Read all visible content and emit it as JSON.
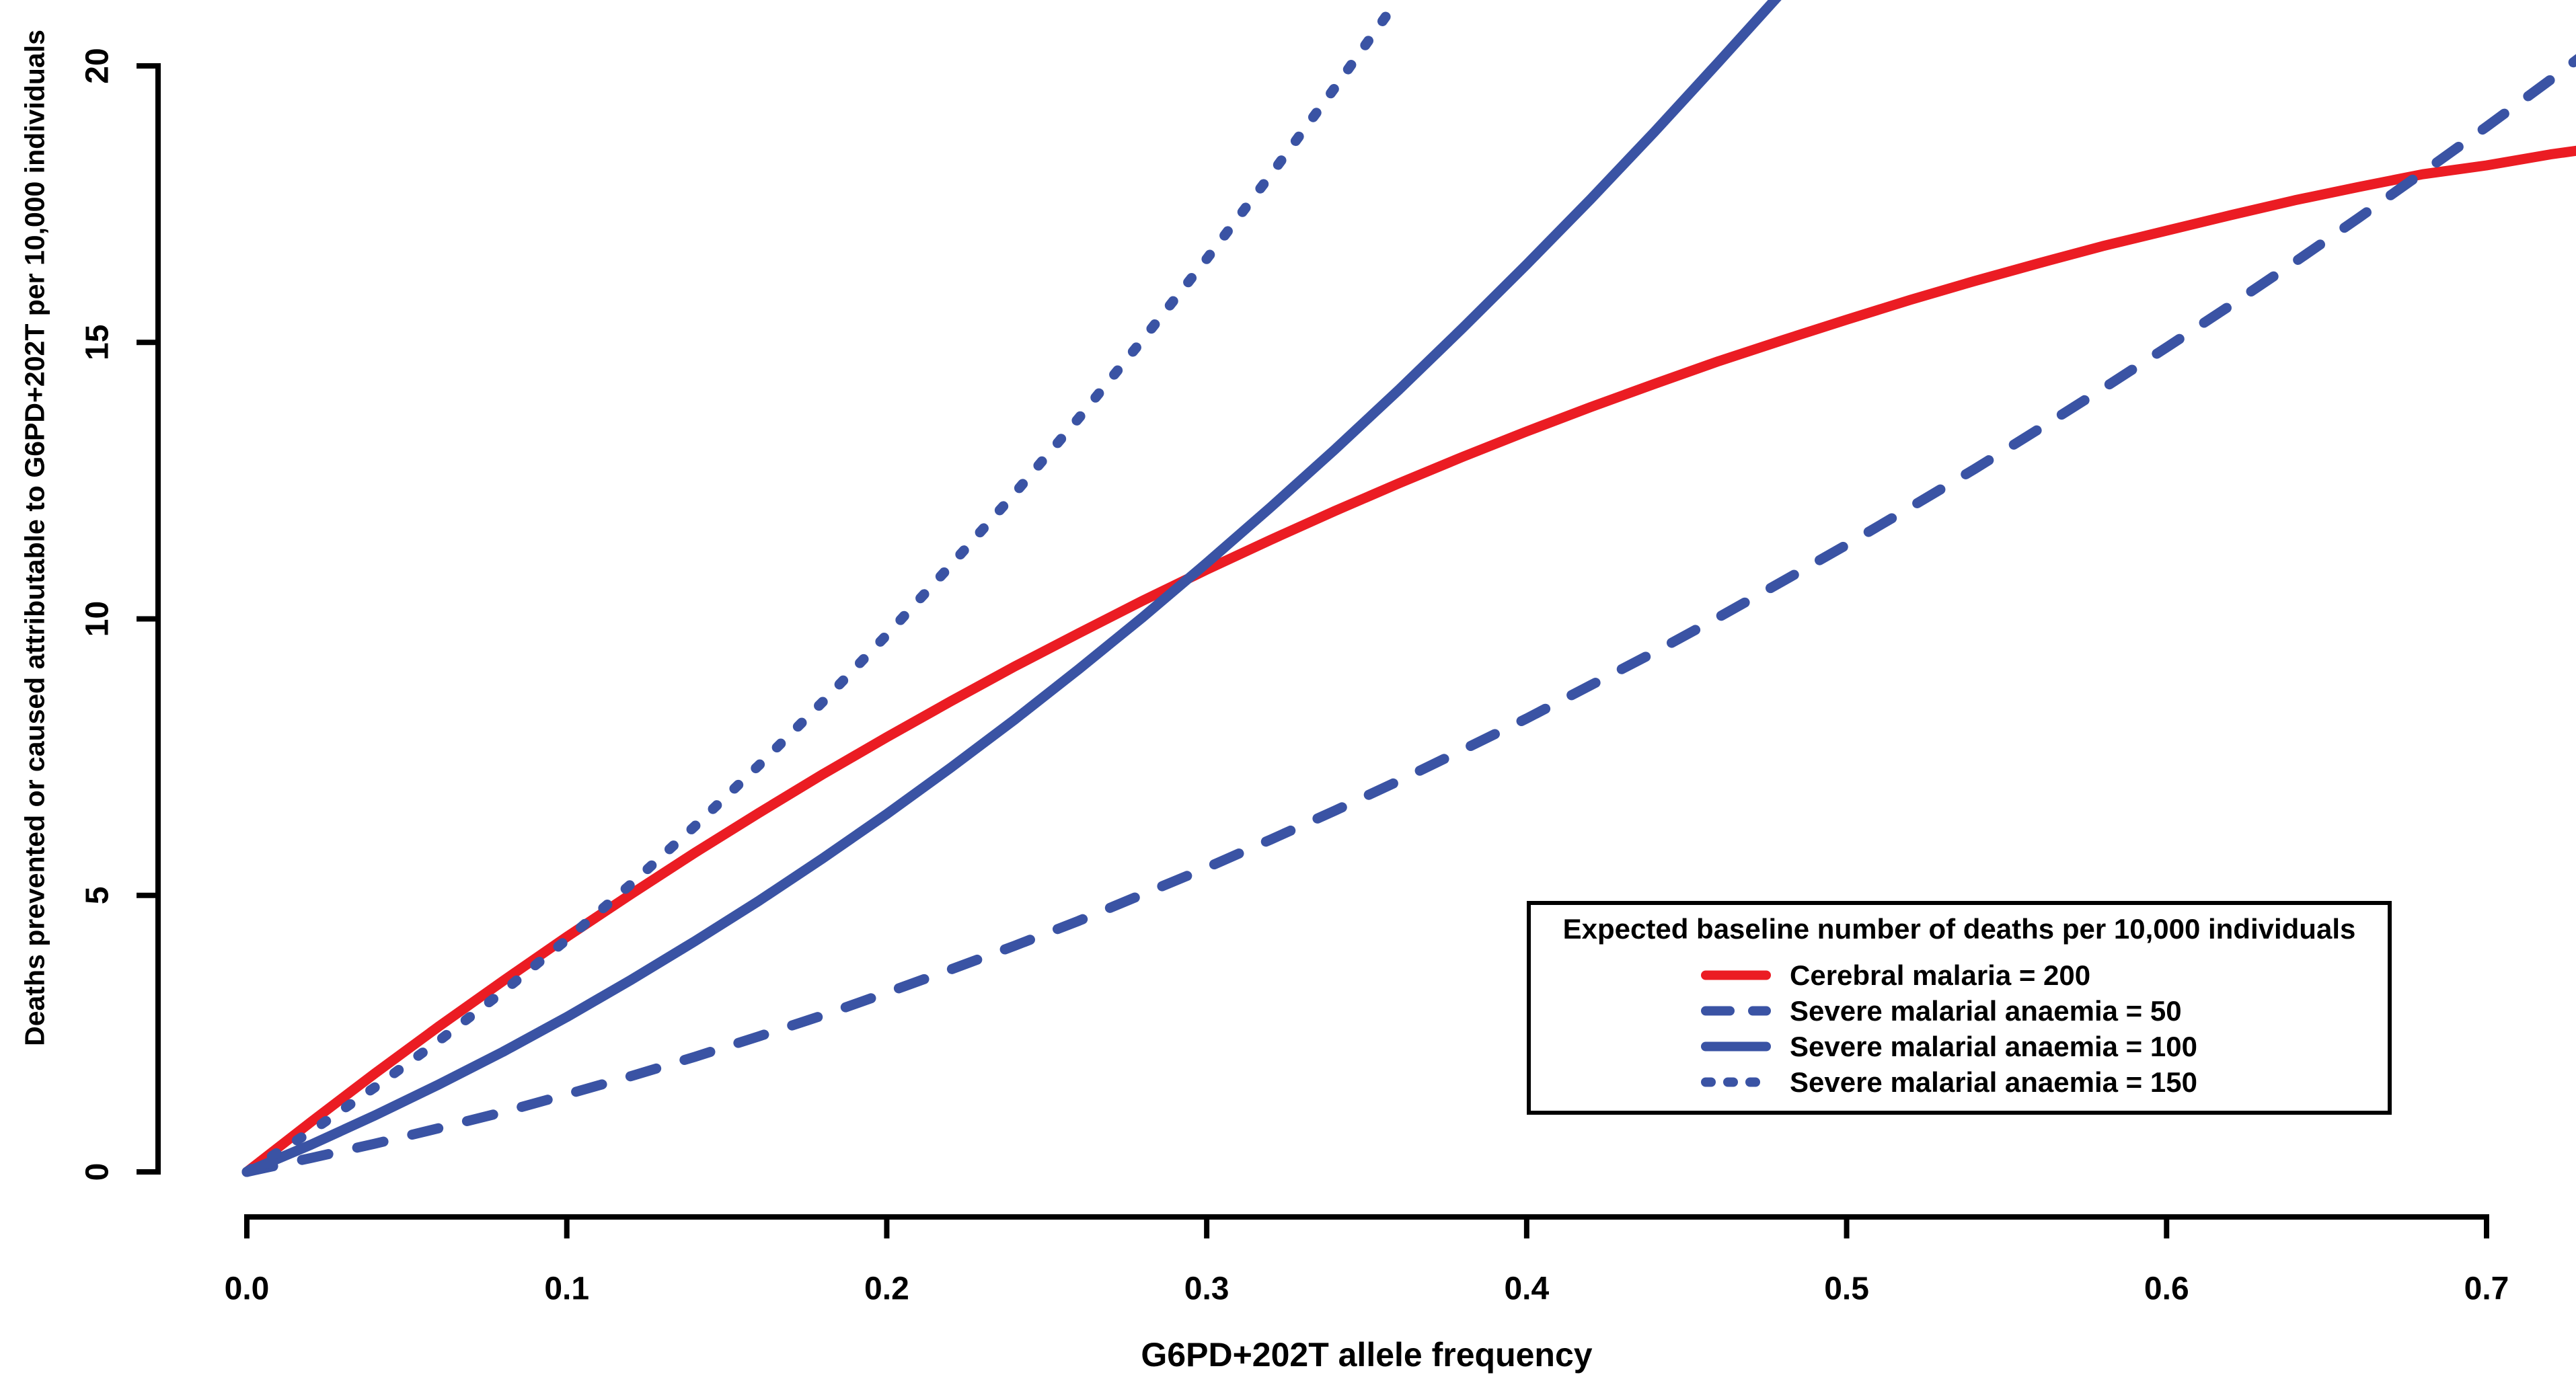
{
  "colors": {
    "red": "#EB1C23",
    "blue": "#3A53A4",
    "axis": "#000000",
    "background": "#FFFFFF"
  },
  "chart_data": {
    "type": "line",
    "title": "",
    "xlabel": "G6PD+202T allele frequency",
    "ylabel": "Deaths prevented or caused attributable to G6PD+202T per 10,000 individuals",
    "xlim": [
      0,
      0.7
    ],
    "ylim": [
      0,
      20
    ],
    "grid": false,
    "x_ticks": [
      {
        "value": 0.0,
        "label": "0.0"
      },
      {
        "value": 0.1,
        "label": "0.1"
      },
      {
        "value": 0.2,
        "label": "0.2"
      },
      {
        "value": 0.3,
        "label": "0.3"
      },
      {
        "value": 0.4,
        "label": "0.4"
      },
      {
        "value": 0.5,
        "label": "0.5"
      },
      {
        "value": 0.6,
        "label": "0.6"
      },
      {
        "value": 0.7,
        "label": "0.7"
      }
    ],
    "y_ticks": [
      {
        "value": 0,
        "label": "0"
      },
      {
        "value": 5,
        "label": "5"
      },
      {
        "value": 10,
        "label": "10"
      },
      {
        "value": 15,
        "label": "15"
      },
      {
        "value": 20,
        "label": "20"
      }
    ],
    "legend": {
      "position": "lower right",
      "title": "Expected baseline number of deaths per 10,000 individuals",
      "items": [
        {
          "label": "Cerebral malaria = 200",
          "color": "red",
          "line_style": "solid"
        },
        {
          "label": "Severe malarial anaemia = 50",
          "color": "blue",
          "line_style": "dashed"
        },
        {
          "label": "Severe malarial anaemia = 100",
          "color": "blue",
          "line_style": "solid"
        },
        {
          "label": "Severe malarial anaemia = 150",
          "color": "blue",
          "line_style": "dotted"
        }
      ]
    },
    "series": [
      {
        "name": "Cerebral malaria = 200",
        "color": "red",
        "line_style": "solid",
        "points": [
          [
            0,
            0
          ],
          [
            0.02,
            0.9
          ],
          [
            0.04,
            1.78
          ],
          [
            0.06,
            2.63
          ],
          [
            0.08,
            3.45
          ],
          [
            0.1,
            4.25
          ],
          [
            0.12,
            5.02
          ],
          [
            0.14,
            5.77
          ],
          [
            0.16,
            6.49
          ],
          [
            0.18,
            7.19
          ],
          [
            0.2,
            7.86
          ],
          [
            0.22,
            8.51
          ],
          [
            0.24,
            9.14
          ],
          [
            0.26,
            9.74
          ],
          [
            0.28,
            10.33
          ],
          [
            0.3,
            10.89
          ],
          [
            0.32,
            11.43
          ],
          [
            0.34,
            11.95
          ],
          [
            0.36,
            12.45
          ],
          [
            0.38,
            12.93
          ],
          [
            0.4,
            13.39
          ],
          [
            0.42,
            13.83
          ],
          [
            0.44,
            14.25
          ],
          [
            0.46,
            14.66
          ],
          [
            0.48,
            15.04
          ],
          [
            0.5,
            15.41
          ],
          [
            0.52,
            15.77
          ],
          [
            0.54,
            16.11
          ],
          [
            0.56,
            16.43
          ],
          [
            0.58,
            16.74
          ],
          [
            0.6,
            17.02
          ],
          [
            0.62,
            17.3
          ],
          [
            0.64,
            17.57
          ],
          [
            0.66,
            17.81
          ],
          [
            0.68,
            18.04
          ],
          [
            0.7,
            18.2
          ],
          [
            0.72,
            18.4
          ],
          [
            0.73,
            18.48
          ]
        ]
      },
      {
        "name": "Severe malarial anaemia = 50",
        "color": "blue",
        "line_style": "dashed",
        "points": [
          [
            0,
            0
          ],
          [
            0.02,
            0.25
          ],
          [
            0.04,
            0.51
          ],
          [
            0.06,
            0.79
          ],
          [
            0.08,
            1.08
          ],
          [
            0.1,
            1.4
          ],
          [
            0.12,
            1.73
          ],
          [
            0.14,
            2.08
          ],
          [
            0.16,
            2.45
          ],
          [
            0.18,
            2.83
          ],
          [
            0.2,
            3.24
          ],
          [
            0.22,
            3.66
          ],
          [
            0.24,
            4.09
          ],
          [
            0.26,
            4.54
          ],
          [
            0.28,
            5.02
          ],
          [
            0.3,
            5.5
          ],
          [
            0.32,
            6.01
          ],
          [
            0.34,
            6.53
          ],
          [
            0.36,
            7.07
          ],
          [
            0.38,
            7.63
          ],
          [
            0.4,
            8.2
          ],
          [
            0.42,
            8.8
          ],
          [
            0.44,
            9.4
          ],
          [
            0.46,
            10.03
          ],
          [
            0.48,
            10.68
          ],
          [
            0.5,
            11.34
          ],
          [
            0.52,
            12.02
          ],
          [
            0.54,
            12.71
          ],
          [
            0.56,
            13.43
          ],
          [
            0.58,
            14.16
          ],
          [
            0.6,
            14.91
          ],
          [
            0.62,
            15.67
          ],
          [
            0.64,
            16.45
          ],
          [
            0.66,
            17.25
          ],
          [
            0.68,
            18.07
          ],
          [
            0.7,
            18.9
          ],
          [
            0.72,
            19.75
          ],
          [
            0.73,
            20.19
          ]
        ]
      },
      {
        "name": "Severe malarial anaemia = 100",
        "color": "blue",
        "line_style": "solid",
        "points": [
          [
            0,
            0
          ],
          [
            0.02,
            0.49
          ],
          [
            0.04,
            1.02
          ],
          [
            0.06,
            1.58
          ],
          [
            0.08,
            2.17
          ],
          [
            0.1,
            2.8
          ],
          [
            0.12,
            3.47
          ],
          [
            0.14,
            4.17
          ],
          [
            0.16,
            4.9
          ],
          [
            0.18,
            5.67
          ],
          [
            0.2,
            6.47
          ],
          [
            0.22,
            7.31
          ],
          [
            0.24,
            8.18
          ],
          [
            0.26,
            9.09
          ],
          [
            0.28,
            10.03
          ],
          [
            0.3,
            11.01
          ],
          [
            0.32,
            12.02
          ],
          [
            0.34,
            13.06
          ],
          [
            0.36,
            14.14
          ],
          [
            0.38,
            15.26
          ],
          [
            0.4,
            16.41
          ],
          [
            0.42,
            17.59
          ],
          [
            0.44,
            18.81
          ],
          [
            0.46,
            20.07
          ],
          [
            0.48,
            21.35
          ]
        ]
      },
      {
        "name": "Severe malarial anaemia = 150",
        "color": "blue",
        "line_style": "dotted",
        "points": [
          [
            0,
            0
          ],
          [
            0.02,
            0.73
          ],
          [
            0.04,
            1.53
          ],
          [
            0.06,
            2.37
          ],
          [
            0.08,
            3.26
          ],
          [
            0.1,
            4.2
          ],
          [
            0.12,
            5.2
          ],
          [
            0.14,
            6.25
          ],
          [
            0.16,
            7.35
          ],
          [
            0.18,
            8.5
          ],
          [
            0.2,
            9.71
          ],
          [
            0.22,
            10.97
          ],
          [
            0.24,
            12.27
          ],
          [
            0.26,
            13.63
          ],
          [
            0.28,
            15.05
          ],
          [
            0.3,
            16.51
          ],
          [
            0.32,
            18.03
          ],
          [
            0.34,
            19.6
          ],
          [
            0.36,
            21.22
          ]
        ]
      }
    ]
  }
}
